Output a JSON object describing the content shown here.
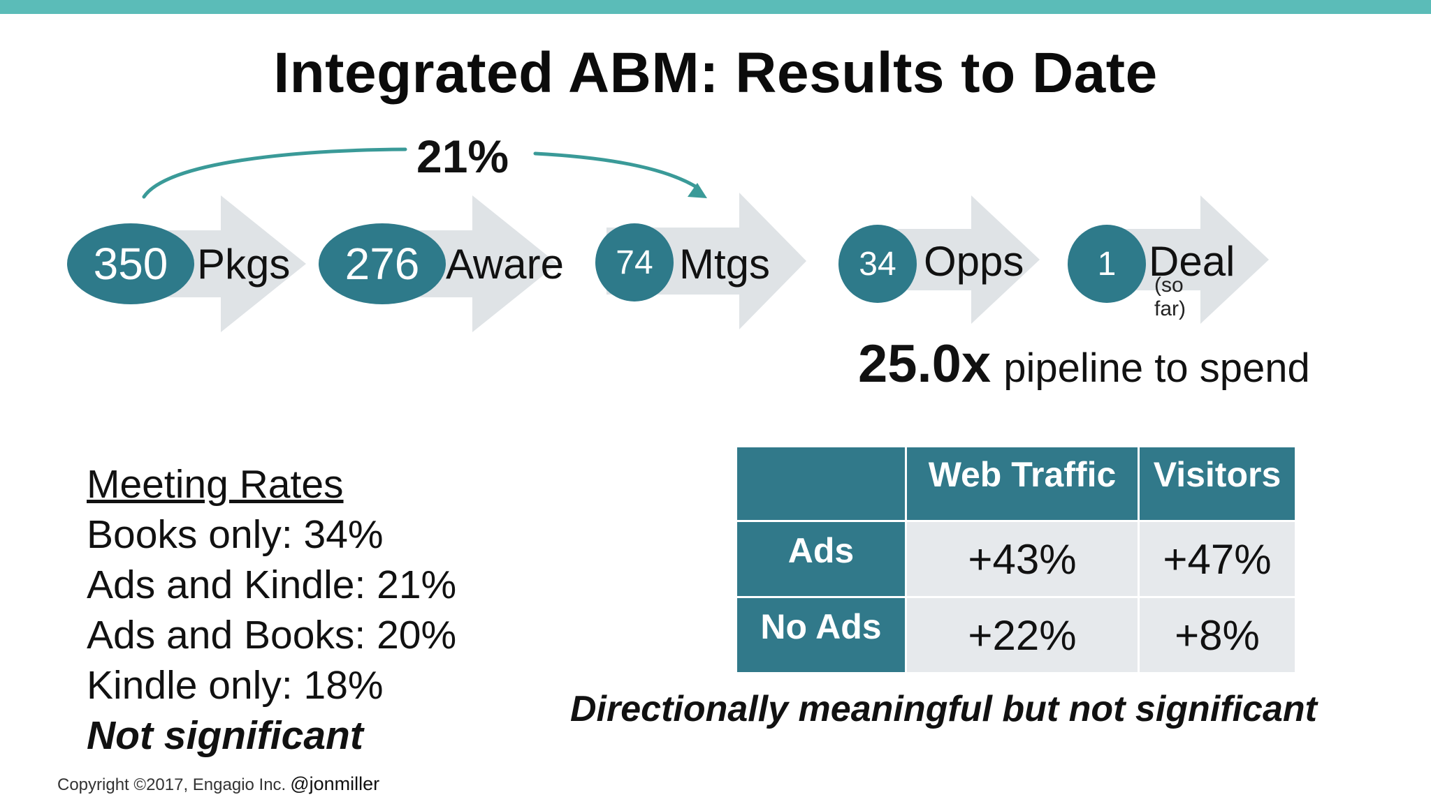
{
  "colors": {
    "accent": "#5bbcb8",
    "teal_dark": "#2e7a8a",
    "arrow_gray": "#dfe3e6",
    "table_cell": "#e6e9ec"
  },
  "title": "Integrated ABM: Results to Date",
  "conversion": {
    "value": "21%"
  },
  "funnel": [
    {
      "number": "350",
      "label": "Pkgs"
    },
    {
      "number": "276",
      "label": "Aware"
    },
    {
      "number": "74",
      "label": "Mtgs"
    },
    {
      "number": "34",
      "label": "Opps"
    },
    {
      "number": "1",
      "label": "Deal",
      "note": "(so far)"
    }
  ],
  "pipeline": {
    "multiple": "25.0x",
    "text": "pipeline to spend"
  },
  "meeting_rates": {
    "heading": "Meeting Rates",
    "items": [
      "Books only: 34%",
      "Ads and Kindle: 21%",
      "Ads and Books: 20%",
      "Kindle only: 18%"
    ],
    "conclusion": "Not significant"
  },
  "table": {
    "columns": [
      "Web Traffic",
      "Visitors"
    ],
    "rows": [
      {
        "label": "Ads",
        "values": [
          "+43%",
          "+47%"
        ]
      },
      {
        "label": "No Ads",
        "values": [
          "+22%",
          "+8%"
        ]
      }
    ]
  },
  "table_note": "Directionally meaningful but not significant",
  "footer": {
    "copyright": "Copyright ©2017, Engagio Inc.",
    "handle": "@jonmiller"
  }
}
